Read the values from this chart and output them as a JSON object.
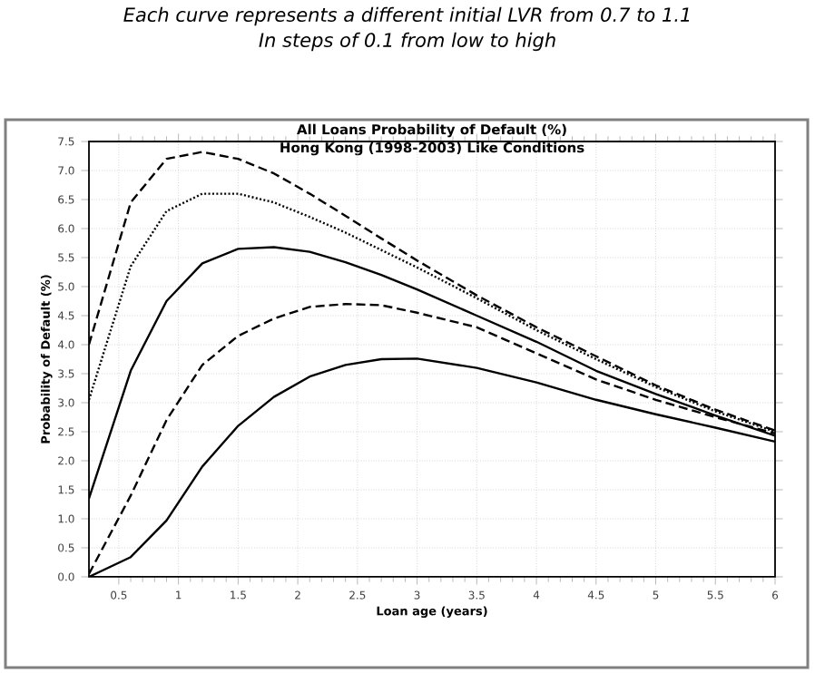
{
  "chart_data": {
    "type": "line",
    "title": "All Loans Probability of Default (%)",
    "subtitle": "Hong Kong (1998-2003) Like Conditions",
    "annotations": [
      "Each curve represents a different initial LVR from 0.7 to 1.1",
      "In steps of 0.1 from low to high"
    ],
    "xlabel": "Loan age (years)",
    "ylabel": "Probability of Default (%)",
    "x": [
      0.25,
      0.6,
      0.9,
      1.2,
      1.5,
      1.8,
      2.1,
      2.4,
      2.7,
      3.0,
      3.5,
      4.0,
      4.5,
      5.0,
      5.5,
      6.0
    ],
    "series": [
      {
        "color": "#000000",
        "line_style": "dashed",
        "values": [
          4.0,
          6.45,
          7.2,
          7.32,
          7.2,
          6.95,
          6.6,
          6.22,
          5.83,
          5.45,
          4.85,
          4.3,
          3.8,
          3.3,
          2.88,
          2.52
        ]
      },
      {
        "color": "#000000",
        "line_style": "dotted",
        "values": [
          3.05,
          5.35,
          6.3,
          6.6,
          6.6,
          6.45,
          6.2,
          5.93,
          5.63,
          5.33,
          4.8,
          4.25,
          3.75,
          3.27,
          2.85,
          2.5
        ]
      },
      {
        "color": "#000000",
        "line_style": "solid",
        "values": [
          1.35,
          3.55,
          4.75,
          5.4,
          5.65,
          5.68,
          5.6,
          5.42,
          5.2,
          4.95,
          4.5,
          4.05,
          3.55,
          3.15,
          2.78,
          2.43
        ]
      },
      {
        "color": "#000000",
        "line_style": "dashed",
        "values": [
          0.05,
          1.4,
          2.7,
          3.65,
          4.15,
          4.45,
          4.65,
          4.7,
          4.68,
          4.55,
          4.3,
          3.85,
          3.4,
          3.05,
          2.75,
          2.47
        ]
      },
      {
        "color": "#000000",
        "line_style": "solid",
        "values": [
          0.0,
          0.34,
          0.97,
          1.9,
          2.6,
          3.1,
          3.45,
          3.65,
          3.75,
          3.76,
          3.6,
          3.35,
          3.05,
          2.8,
          2.57,
          2.33
        ]
      }
    ],
    "xlim": [
      0.25,
      6.0
    ],
    "ylim": [
      0,
      7.5
    ],
    "xticks": [
      0.5,
      1,
      1.5,
      2,
      2.5,
      3,
      3.5,
      4,
      4.5,
      5,
      5.5,
      6
    ],
    "yticks": [
      {
        "value": 0,
        "label": "0.0"
      },
      0.5,
      {
        "value": 1,
        "label": "1.0"
      },
      1.5,
      {
        "value": 2,
        "label": "2.0"
      },
      2.5,
      {
        "value": 3,
        "label": "3.0"
      },
      3.5,
      {
        "value": 4,
        "label": "4.0"
      },
      4.5,
      {
        "value": 5,
        "label": "5.0"
      },
      5.5,
      {
        "value": 6,
        "label": "6.0"
      },
      6.5,
      {
        "value": 7,
        "label": "7.0"
      },
      7.5
    ],
    "grid": true,
    "marker": "none"
  }
}
